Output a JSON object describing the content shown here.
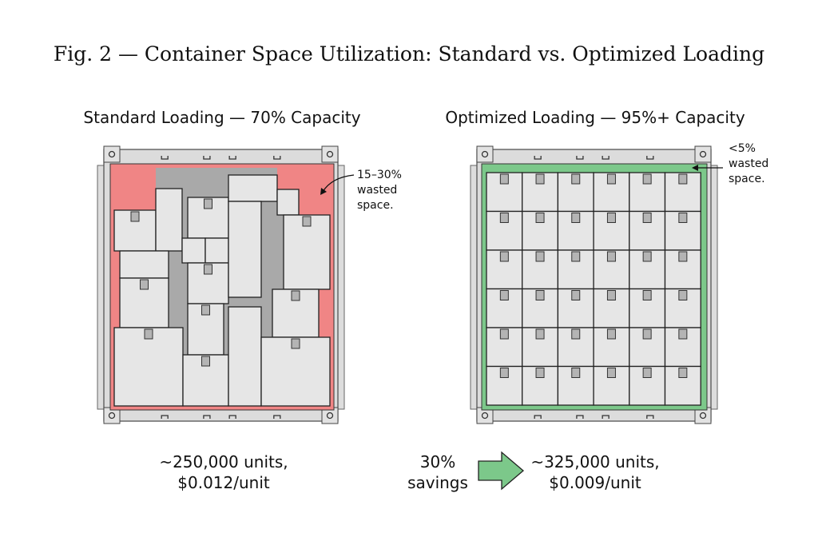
{
  "title": "Fig. 2 — Container Space Utilization: Standard vs. Optimized Loading",
  "standard": {
    "heading": "Standard Loading — 70% Capacity",
    "annotation": [
      "15–30%",
      "wasted",
      "space."
    ],
    "result": [
      "~250,000 units,",
      "$0.012/unit"
    ]
  },
  "optimized": {
    "heading": "Optimized Loading — 95%+ Capacity",
    "annotation": [
      "<5%",
      "wasted",
      "space."
    ],
    "result": [
      "~325,000 units,",
      "$0.009/unit"
    ]
  },
  "savings": [
    "30%",
    "savings"
  ],
  "colors": {
    "waste": "#f08585",
    "gap": "#a9a9a9",
    "tight": "#7cc88a",
    "box": "#e6e6e6",
    "arrow": "#7cc88a"
  }
}
